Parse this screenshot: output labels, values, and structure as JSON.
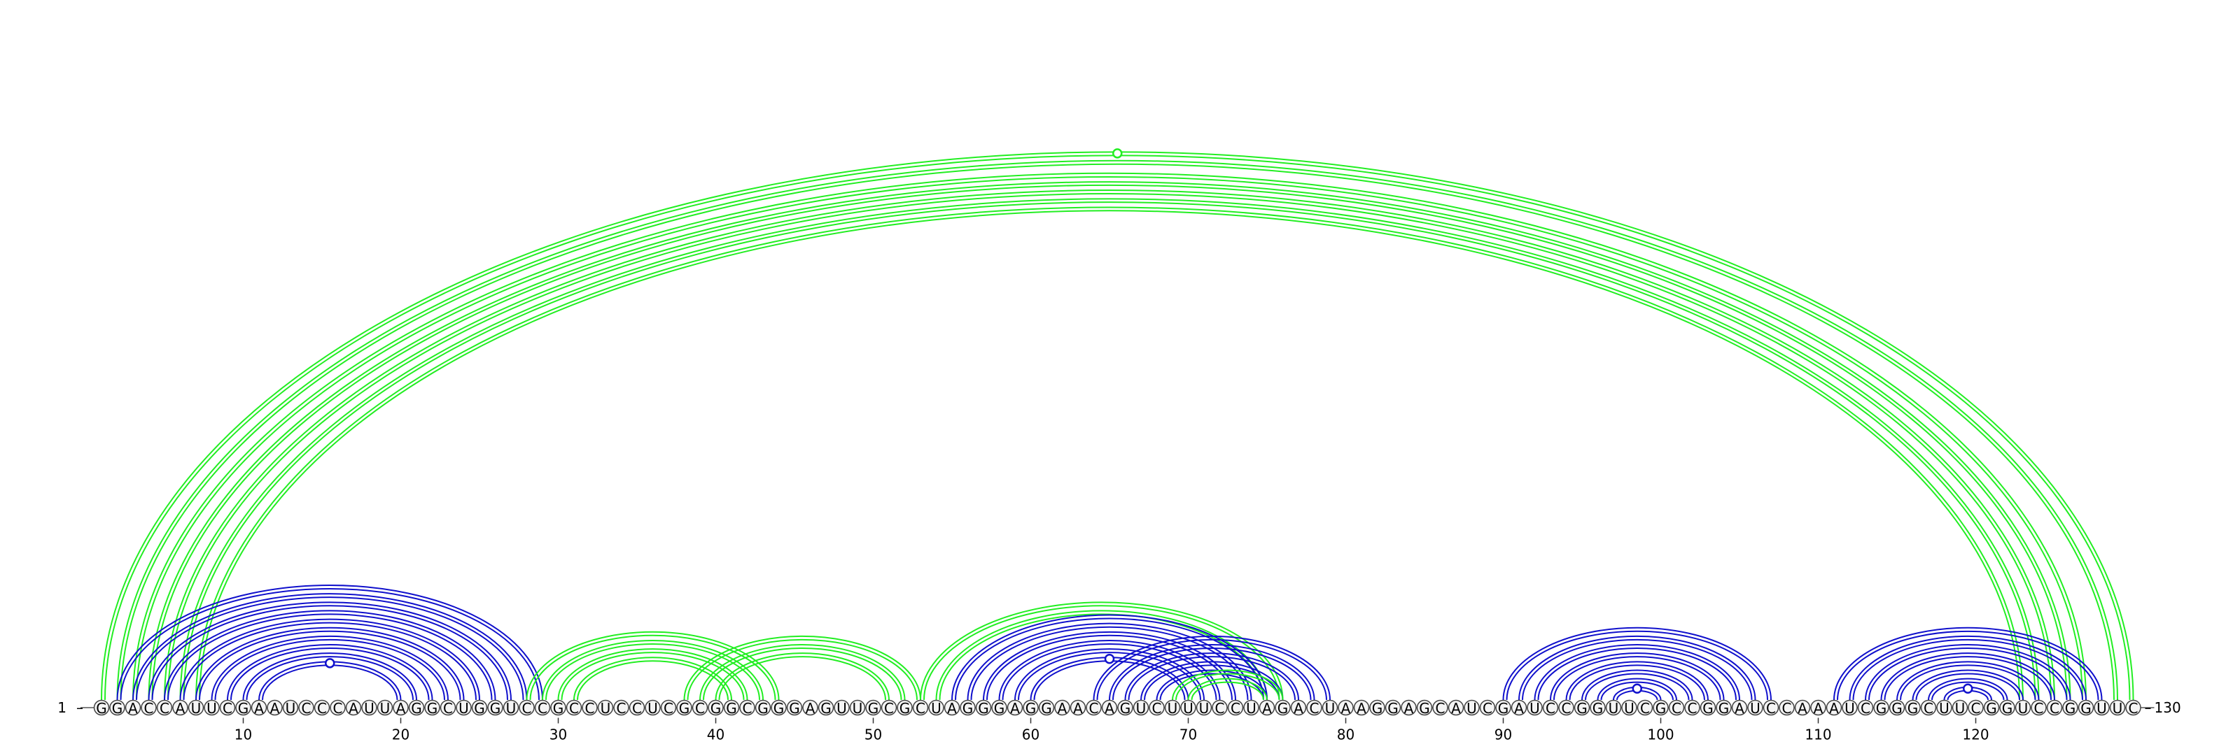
{
  "chart_data": {
    "type": "arc-diagram",
    "sequence": "GGACCAUUCGAAUCCCAUUAGGCUGGUCCGCCUCCUCGCGGCGGGAGUUGCGCUAGGGAGGAACAGUCUUUCCUAGACUAAGGAGCAUCGAUCCGGUUCGCCGGAUCCAAAUCGGGCUUCGGUCCGGUUC",
    "start_label": "1",
    "end_label": "130",
    "ticks": [
      10,
      20,
      30,
      40,
      50,
      60,
      70,
      80,
      90,
      100,
      110,
      120
    ],
    "colors": {
      "blue": "#1010cc",
      "green": "#22ee22"
    },
    "helices": [
      {
        "color": "green",
        "arcs": [
          [
            1,
            130
          ],
          [
            2,
            129
          ],
          [
            3,
            127
          ],
          [
            4,
            126
          ],
          [
            5,
            125
          ],
          [
            6,
            124
          ],
          [
            7,
            123
          ]
        ],
        "open_circle_arc": [
          1,
          130
        ]
      },
      {
        "color": "blue",
        "arcs": [
          [
            2,
            29
          ],
          [
            3,
            28
          ],
          [
            4,
            27
          ],
          [
            5,
            26
          ],
          [
            6,
            25
          ],
          [
            7,
            24
          ],
          [
            8,
            23
          ],
          [
            9,
            22
          ],
          [
            10,
            21
          ],
          [
            11,
            20
          ]
        ],
        "open_circle_arc": [
          11,
          20
        ]
      },
      {
        "color": "green",
        "arcs": [
          [
            28,
            44
          ],
          [
            29,
            43
          ],
          [
            30,
            42
          ],
          [
            31,
            41
          ]
        ]
      },
      {
        "color": "green",
        "arcs": [
          [
            38,
            53
          ],
          [
            39,
            52
          ],
          [
            40,
            51
          ]
        ]
      },
      {
        "color": "green",
        "arcs": [
          [
            53,
            76
          ],
          [
            54,
            75
          ]
        ]
      },
      {
        "color": "blue",
        "arcs": [
          [
            55,
            75
          ],
          [
            56,
            74
          ],
          [
            57,
            73
          ],
          [
            58,
            72
          ],
          [
            59,
            71
          ],
          [
            60,
            70
          ]
        ],
        "open_circle_arc": [
          60,
          70
        ]
      },
      {
        "color": "blue",
        "arcs": [
          [
            64,
            79
          ],
          [
            65,
            78
          ],
          [
            66,
            77
          ],
          [
            67,
            76
          ],
          [
            68,
            75
          ]
        ]
      },
      {
        "color": "green",
        "arcs": [
          [
            69,
            76
          ],
          [
            70,
            75
          ]
        ]
      },
      {
        "color": "blue",
        "arcs": [
          [
            90,
            107
          ],
          [
            91,
            106
          ],
          [
            92,
            105
          ],
          [
            93,
            104
          ],
          [
            94,
            103
          ],
          [
            95,
            102
          ],
          [
            96,
            101
          ],
          [
            97,
            100
          ]
        ],
        "open_circle_arc": [
          97,
          100
        ]
      },
      {
        "color": "blue",
        "arcs": [
          [
            111,
            128
          ],
          [
            112,
            127
          ],
          [
            113,
            126
          ],
          [
            114,
            125
          ],
          [
            115,
            124
          ],
          [
            116,
            123
          ],
          [
            117,
            122
          ],
          [
            118,
            121
          ]
        ],
        "open_circle_arc": [
          118,
          121
        ]
      }
    ]
  }
}
